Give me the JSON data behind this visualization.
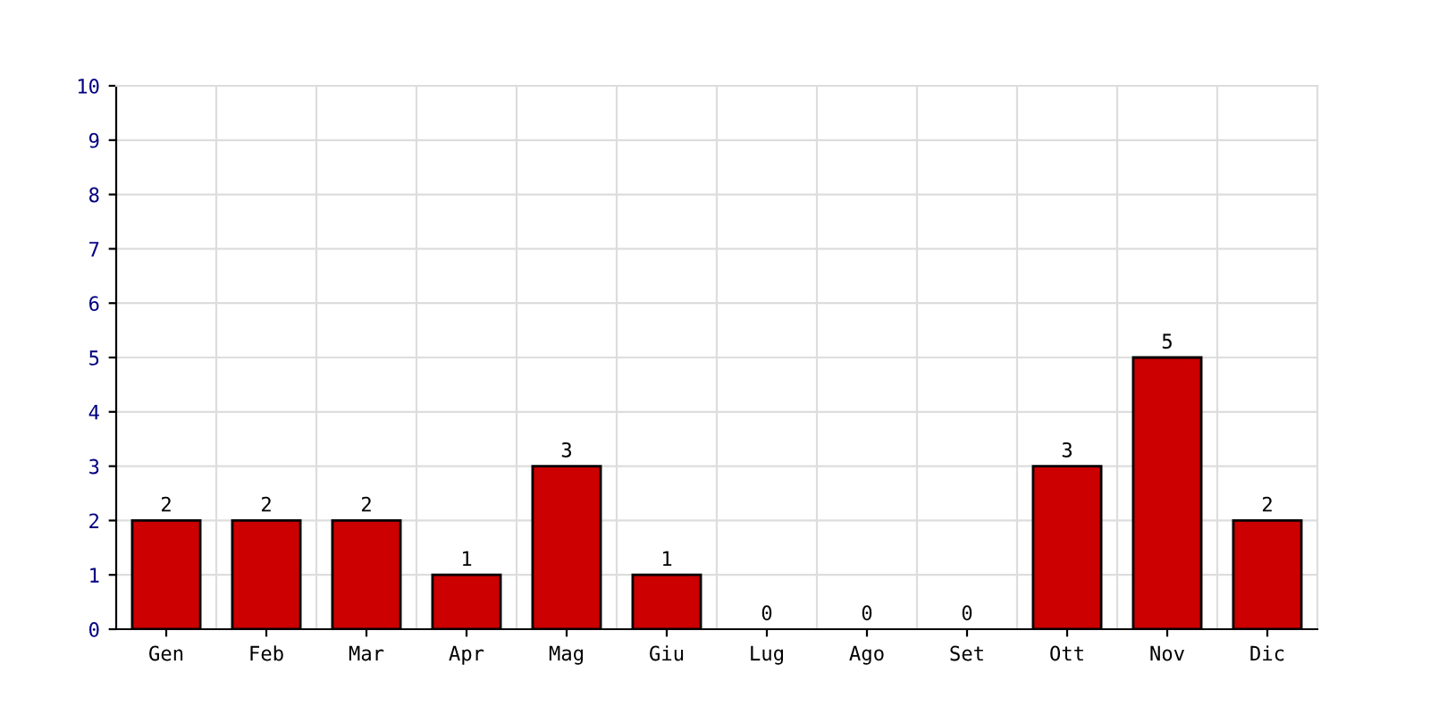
{
  "chart_data": {
    "type": "bar",
    "categories": [
      "Gen",
      "Feb",
      "Mar",
      "Apr",
      "Mag",
      "Giu",
      "Lug",
      "Ago",
      "Set",
      "Ott",
      "Nov",
      "Dic"
    ],
    "values": [
      2,
      2,
      2,
      1,
      3,
      1,
      0,
      0,
      0,
      3,
      5,
      2
    ],
    "color": "#cc0000",
    "ylim": [
      0,
      10
    ],
    "yticks": [
      0,
      1,
      2,
      3,
      4,
      5,
      6,
      7,
      8,
      9,
      10
    ],
    "grid": true,
    "data_labels": true
  }
}
